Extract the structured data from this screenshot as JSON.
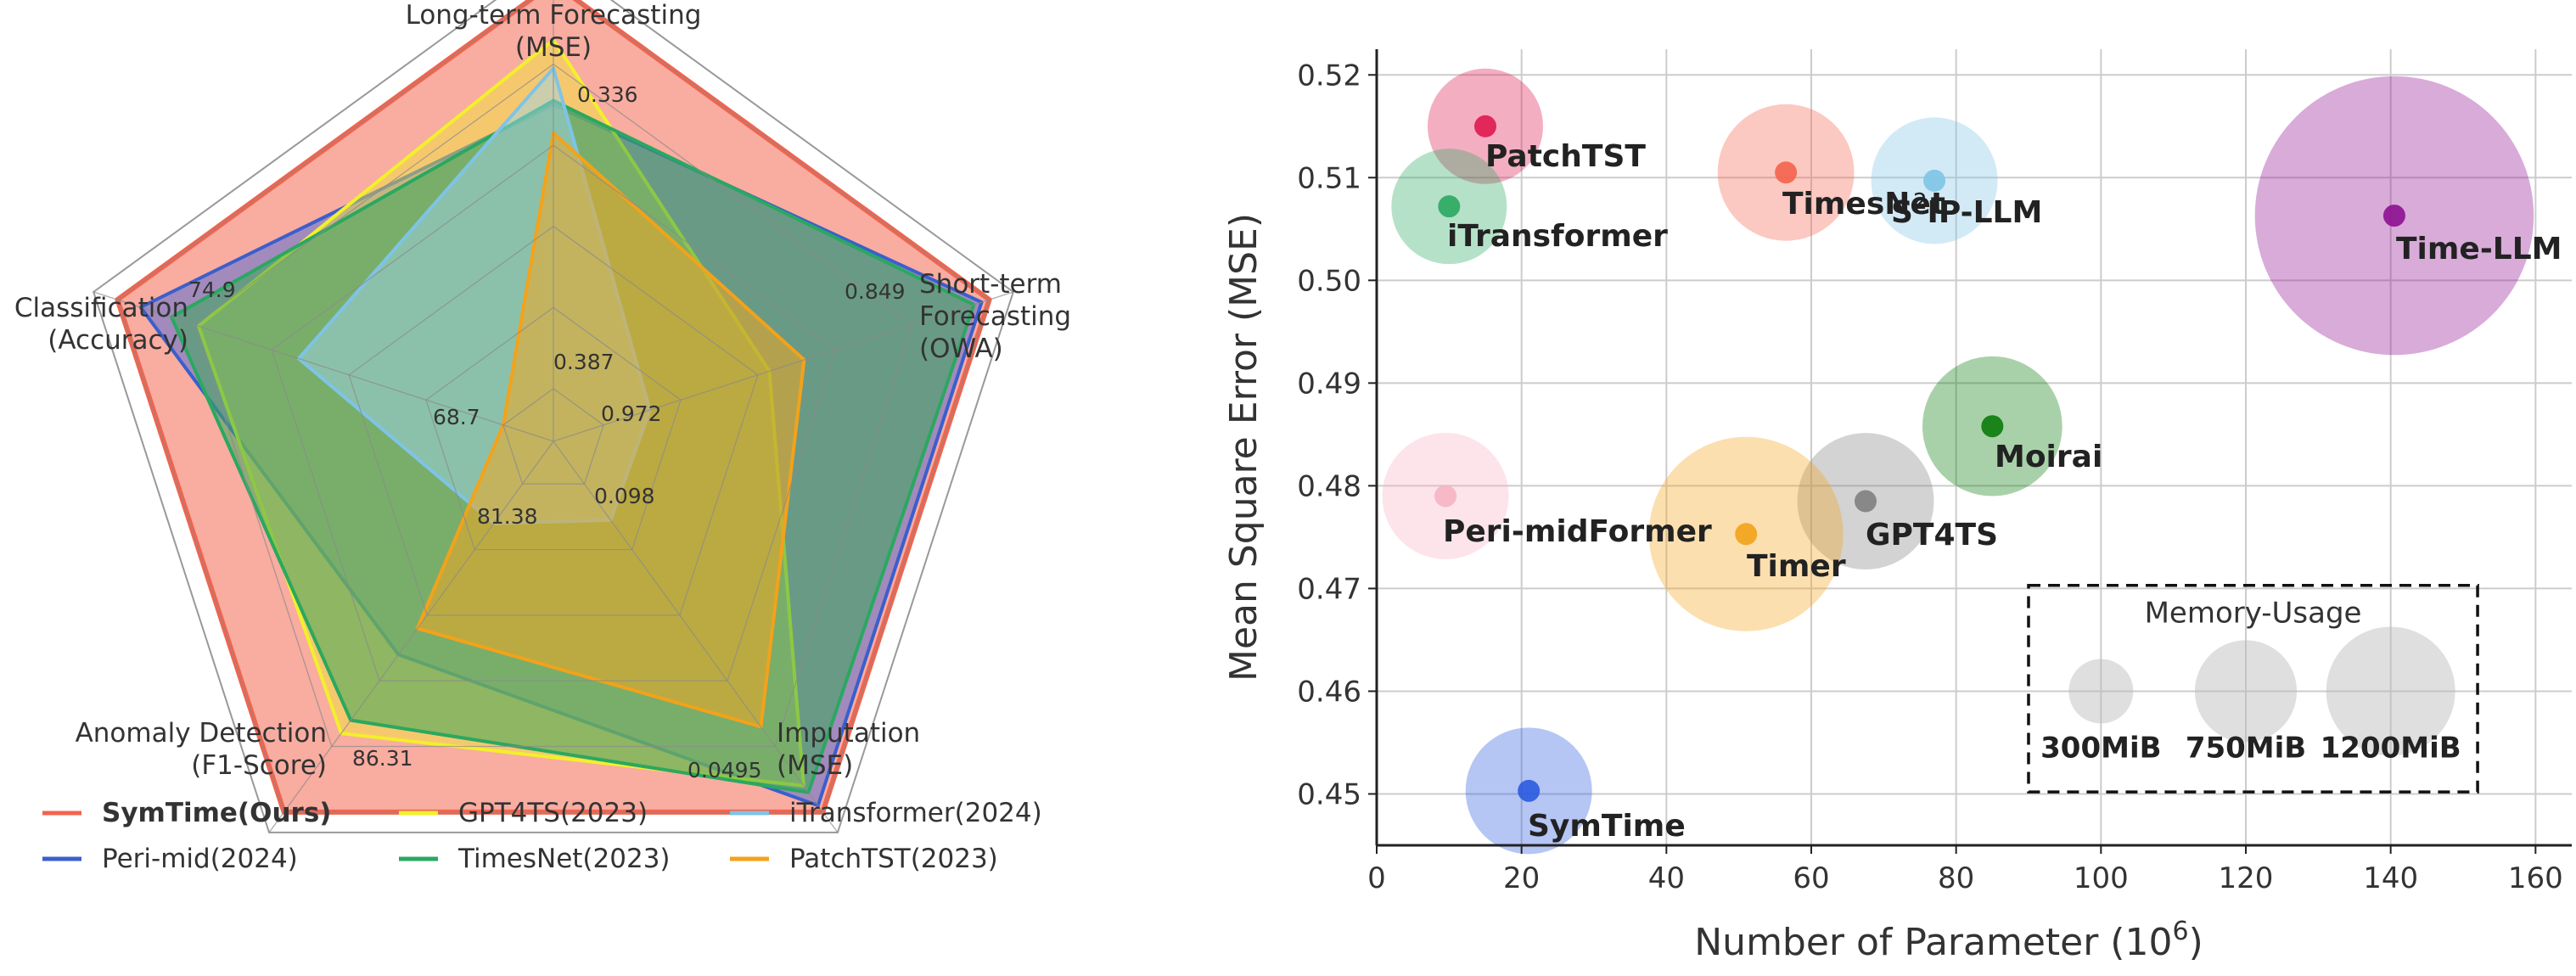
{
  "chart_data": [
    {
      "type": "radar",
      "axes": [
        {
          "label": [
            "Long-term Forecasting",
            "(MSE)"
          ],
          "max_label": "0.336",
          "min_label": "0.387"
        },
        {
          "label": [
            "Short-term",
            "Forecasting",
            "(OWA)"
          ],
          "max_label": "0.849",
          "min_label": "0.972"
        },
        {
          "label": [
            "Imputation",
            "(MSE)"
          ],
          "max_label": "0.0495",
          "min_label": "0.098"
        },
        {
          "label": [
            "Anomaly Detection",
            "(F1-Score)"
          ],
          "max_label": "86.31",
          "min_label": "81.38"
        },
        {
          "label": [
            "Classification",
            "(Accuracy)"
          ],
          "max_label": "74.9",
          "min_label": "68.7"
        }
      ],
      "series": [
        {
          "name": "SymTime(Ours)",
          "color": "#f4634d",
          "fill": "#f9a89b",
          "fill_opacity": 0.95,
          "values": [
            1.0,
            1.0,
            1.0,
            1.0,
            1.0
          ]
        },
        {
          "name": "Peri-mid(2024)",
          "color": "#3a5fcd",
          "fill": "#5b6fd6",
          "fill_opacity": 0.55,
          "values": [
            0.7,
            0.98,
            0.98,
            0.52,
            0.94
          ]
        },
        {
          "name": "GPT4TS(2023)",
          "color": "#f2f02b",
          "fill": "#f2ea30",
          "fill_opacity": 0.45,
          "values": [
            0.86,
            0.43,
            0.92,
            0.76,
            0.79
          ]
        },
        {
          "name": "TimesNet(2023)",
          "color": "#2aa860",
          "fill": "#3aa85a",
          "fill_opacity": 0.55,
          "values": [
            0.71,
            0.96,
            0.94,
            0.72,
            0.86
          ]
        },
        {
          "name": "iTransformer(2024)",
          "color": "#7ec4e6",
          "fill": "#9dd3ea",
          "fill_opacity": 0.5,
          "values": [
            0.79,
            0.12,
            0.11,
            0.12,
            0.53
          ]
        },
        {
          "name": "PatchTST(2023)",
          "color": "#f3a21a",
          "fill": "#f2a820",
          "fill_opacity": 0.55,
          "values": [
            0.63,
            0.52,
            0.74,
            0.44,
            0.0
          ]
        }
      ],
      "legend": {
        "placement": "bottom",
        "bold_first": true
      }
    },
    {
      "type": "scatter",
      "xlabel": "Number of Parameter (10",
      "xlabel_sup": "6",
      "xlabel_end": ")",
      "ylabel": "Mean Square Error (MSE)",
      "xlim": [
        0,
        165
      ],
      "ylim": [
        0.445,
        0.5225
      ],
      "xticks": [
        "0",
        "20",
        "40",
        "60",
        "80",
        "100",
        "120",
        "140",
        "160"
      ],
      "xtick_values": [
        0,
        20,
        40,
        60,
        80,
        100,
        120,
        140,
        160
      ],
      "yticks": [
        "0.45",
        "0.46",
        "0.47",
        "0.48",
        "0.49",
        "0.50",
        "0.51",
        "0.52"
      ],
      "ytick_values": [
        0.45,
        0.46,
        0.47,
        0.48,
        0.49,
        0.5,
        0.51,
        0.52
      ],
      "grid": true,
      "points": [
        {
          "label": "PatchTST",
          "x": 15,
          "y": 0.515,
          "memory_mib": 300,
          "color": "#e0184f"
        },
        {
          "label": "iTransformer",
          "x": 10,
          "y": 0.5072,
          "memory_mib": 300,
          "color": "#2aa860"
        },
        {
          "label": "TimesNet",
          "x": 56.5,
          "y": 0.5105,
          "memory_mib": 420,
          "color": "#f4634d"
        },
        {
          "label": "S",
          "label_sup": "2",
          "label_end": "IP-LLM",
          "x": 77,
          "y": 0.5097,
          "memory_mib": 360,
          "color": "#7ec4e6"
        },
        {
          "label": "Time-LLM",
          "x": 140.5,
          "y": 0.5063,
          "memory_mib": 1750,
          "color": "#8e0f91"
        },
        {
          "label": "Moirai",
          "x": 85,
          "y": 0.4858,
          "memory_mib": 440,
          "color": "#0a7a0a"
        },
        {
          "label": "Peri-midFormer",
          "x": 9.5,
          "y": 0.479,
          "memory_mib": 360,
          "color": "#f6b3c3"
        },
        {
          "label": "GPT4TS",
          "x": 67.5,
          "y": 0.4785,
          "memory_mib": 420,
          "color": "#808080"
        },
        {
          "label": "Timer",
          "x": 51,
          "y": 0.4753,
          "memory_mib": 850,
          "color": "#f3a21a"
        },
        {
          "label": "SymTime",
          "x": 21,
          "y": 0.4503,
          "memory_mib": 360,
          "color": "#2a5ae0"
        }
      ],
      "memory_legend": {
        "title": "Memory-Usage",
        "items": [
          {
            "label": "300MiB",
            "memory_mib": 300
          },
          {
            "label": "750MiB",
            "memory_mib": 750
          },
          {
            "label": "1200MiB",
            "memory_mib": 1200
          }
        ]
      }
    }
  ]
}
